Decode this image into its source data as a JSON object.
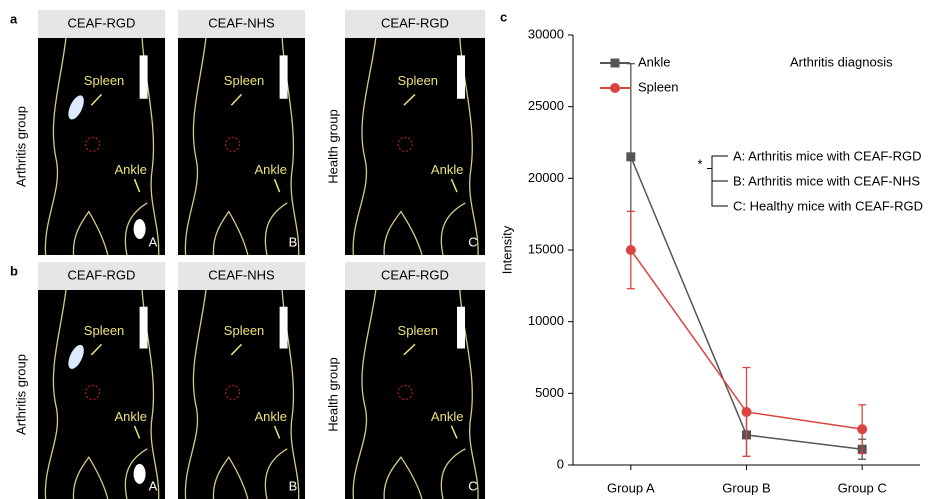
{
  "figure_panels": [
    {
      "label": "a",
      "groups": [
        "Arthritis group",
        "Health group"
      ],
      "images": [
        {
          "title": "CEAF-RGD",
          "letter": "A",
          "spleen": "Spleen",
          "ankle": "Ankle"
        },
        {
          "title": "CEAF-NHS",
          "letter": "B",
          "spleen": "Spleen",
          "ankle": "Ankle"
        },
        {
          "title": "CEAF-RGD",
          "letter": "C",
          "spleen": "Spleen",
          "ankle": "Ankle"
        }
      ]
    },
    {
      "label": "b",
      "groups": [
        "Arthritis group",
        "Health group"
      ],
      "images": [
        {
          "title": "CEAF-RGD",
          "letter": "A",
          "spleen": "Spleen",
          "ankle": "Ankle"
        },
        {
          "title": "CEAF-NHS",
          "letter": "B",
          "spleen": "Spleen",
          "ankle": "Ankle"
        },
        {
          "title": "CEAF-RGD",
          "letter": "C",
          "spleen": "Spleen",
          "ankle": "Ankle"
        }
      ]
    }
  ],
  "chart_data": {
    "type": "line",
    "panel_label": "c",
    "y_label": "Intensity",
    "annotation": "Arthritis diagnosis",
    "significance": "*",
    "group_notes": [
      "A: Arthritis mice with CEAF-RGD",
      "B: Arthritis mice with CEAF-NHS",
      "C: Healthy mice with CEAF-RGD"
    ],
    "categories": [
      "Group A",
      "Group B",
      "Group C"
    ],
    "series": [
      {
        "name": "Ankle",
        "color": "#555555",
        "marker": "square",
        "values": [
          21500,
          2100,
          1100
        ],
        "errors": [
          6500,
          1500,
          700
        ]
      },
      {
        "name": "Spleen",
        "color": "#d9463f",
        "marker": "circle",
        "values": [
          15000,
          3700,
          2500
        ],
        "errors": [
          2700,
          3100,
          1700
        ]
      }
    ],
    "ylim": [
      0,
      30000
    ],
    "yticks": [
      0,
      5000,
      10000,
      15000,
      20000,
      25000,
      30000
    ]
  }
}
